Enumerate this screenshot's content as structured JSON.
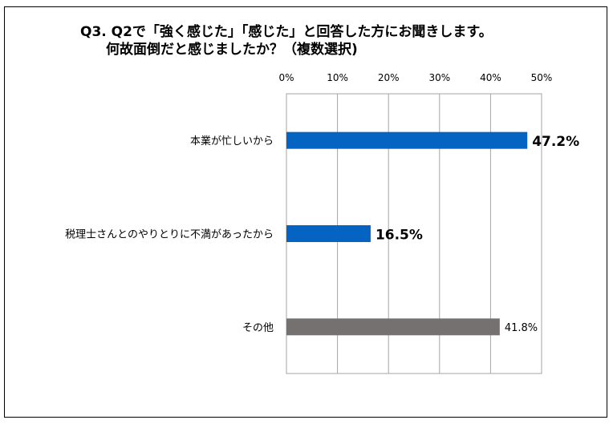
{
  "title": {
    "line1": "Q3.  Q2で「強く感じた」「感じた」と回答した方にお聞きします。",
    "line2": "何故面倒だと感じましたか？（複数選択)"
  },
  "chart_data": {
    "type": "bar",
    "orientation": "horizontal",
    "categories": [
      "本業が忙しいから",
      "税理士さんとのやりとりに不満があったから",
      "その他"
    ],
    "values": [
      47.2,
      16.5,
      41.8
    ],
    "value_labels": [
      "47.2%",
      "16.5%",
      "41.8%"
    ],
    "bar_colors": [
      "#0563c1",
      "#0563c1",
      "#767171"
    ],
    "emphasized": [
      true,
      true,
      false
    ],
    "xlim": [
      0,
      50
    ],
    "ticks": [
      0,
      10,
      20,
      30,
      40,
      50
    ],
    "tick_labels": [
      "0%",
      "10%",
      "20%",
      "30%",
      "40%",
      "50%"
    ],
    "axis_position": "top",
    "grid": true
  }
}
